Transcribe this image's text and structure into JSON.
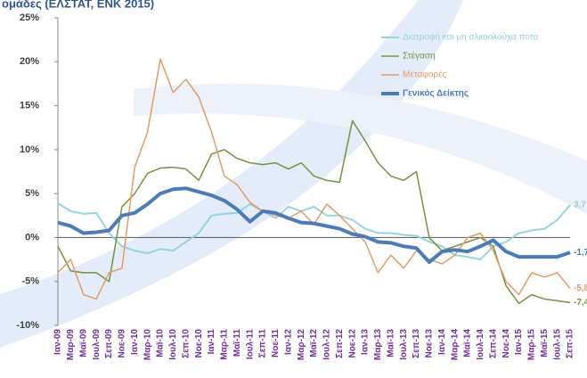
{
  "chart_data": {
    "type": "line",
    "title": "ομάδες (ΕΛΣΤΑΤ, ΕΝΚ 2015)",
    "categories": [
      "Ιαν-09",
      "Μαρ-09",
      "Μαϊ-09",
      "Ιουλ-09",
      "Σεπ-09",
      "Νοε-09",
      "Ιαν-10",
      "Μαρ-10",
      "Μαϊ-10",
      "Ιουλ-10",
      "Σεπ-10",
      "Νοε-10",
      "Ιαν-11",
      "Μαρ-11",
      "Μαϊ-11",
      "Ιουλ-11",
      "Σεπ-11",
      "Νοε-11",
      "Ιαν-12",
      "Μαρ-12",
      "Μαϊ-12",
      "Ιουλ-12",
      "Σεπ-12",
      "Νοε-12",
      "Ιαν-13",
      "Μαρ-13",
      "Μαϊ-13",
      "Ιουλ-13",
      "Σεπ-13",
      "Νοε-13",
      "Ιαν-14",
      "Μαρ-14",
      "Μαϊ-14",
      "Ιουλ-14",
      "Σεπ-14",
      "Νοε-14",
      "Ιαν-15",
      "Μαρ-15",
      "Μαϊ-15",
      "Ιουλ-15",
      "Σεπ-15"
    ],
    "series": [
      {
        "name": "Διατροφή και μη αλκοολούχα ποτά",
        "color": "#92d5dc",
        "width": 2,
        "values": [
          3.9,
          3.0,
          2.7,
          2.8,
          0.5,
          -1.0,
          -1.5,
          -1.8,
          -1.3,
          -1.5,
          -0.5,
          0.5,
          2.5,
          2.7,
          2.8,
          3.8,
          3.0,
          2.2,
          3.5,
          3.0,
          3.5,
          2.5,
          2.5,
          2.0,
          1.0,
          0.5,
          0.5,
          0.3,
          0.2,
          -0.5,
          -1.0,
          -2.0,
          -2.2,
          -2.5,
          -1.0,
          -0.5,
          0.5,
          0.8,
          1.0,
          2.0,
          3.7
        ],
        "value_labels": [
          null,
          null,
          null,
          null,
          null,
          null,
          null,
          null,
          null,
          null,
          null,
          null,
          null,
          null,
          null,
          null,
          null,
          null,
          null,
          null,
          null,
          null,
          null,
          null,
          null,
          null,
          null,
          null,
          null,
          null,
          null,
          null,
          null,
          null,
          null,
          null,
          null,
          null,
          null,
          null,
          "3,7"
        ]
      },
      {
        "name": "Στέγαση",
        "color": "#77933c",
        "width": 1.5,
        "values": [
          -1.0,
          -3.8,
          -4.0,
          -4.0,
          -5.0,
          3.5,
          5.0,
          7.3,
          7.9,
          8.0,
          7.8,
          6.5,
          9.5,
          10.0,
          9.0,
          8.5,
          8.3,
          8.5,
          7.8,
          8.5,
          7.0,
          6.5,
          6.3,
          13.3,
          11.0,
          8.5,
          7.0,
          6.5,
          7.5,
          0.0,
          -1.5,
          -1.0,
          -0.5,
          0.0,
          -1.0,
          -5.5,
          -7.5,
          -6.5,
          -7.0,
          -7.2,
          -7.4
        ],
        "value_labels": [
          null,
          null,
          null,
          null,
          null,
          null,
          null,
          null,
          null,
          null,
          null,
          null,
          null,
          null,
          null,
          null,
          null,
          null,
          null,
          null,
          null,
          null,
          null,
          null,
          null,
          null,
          null,
          null,
          null,
          null,
          null,
          null,
          null,
          null,
          null,
          null,
          null,
          null,
          null,
          null,
          "-7,4"
        ]
      },
      {
        "name": "Μεταφορές",
        "color": "#e59b63",
        "width": 1.5,
        "values": [
          -4.0,
          -2.5,
          -6.5,
          -7.0,
          -4.0,
          -3.5,
          8.0,
          12.0,
          20.3,
          16.5,
          18.0,
          16.0,
          12.0,
          7.0,
          6.0,
          4.0,
          3.0,
          2.5,
          2.2,
          3.0,
          1.5,
          3.8,
          2.5,
          1.0,
          -0.5,
          -4.0,
          -2.0,
          -3.5,
          -1.5,
          -2.5,
          -3.0,
          -2.0,
          0.0,
          0.5,
          -1.5,
          -5.0,
          -6.5,
          -4.0,
          -4.5,
          -4.0,
          -5.8
        ],
        "value_labels": [
          null,
          null,
          null,
          null,
          null,
          null,
          null,
          null,
          null,
          null,
          null,
          null,
          null,
          null,
          null,
          null,
          null,
          null,
          null,
          null,
          null,
          null,
          null,
          null,
          null,
          null,
          null,
          null,
          null,
          null,
          null,
          null,
          null,
          null,
          null,
          null,
          null,
          null,
          null,
          null,
          "-5,8"
        ]
      },
      {
        "name": "Γενικός Δείκτης",
        "color": "#4a7bbd",
        "width": 4,
        "values": [
          1.7,
          1.3,
          0.5,
          0.6,
          0.8,
          2.5,
          2.8,
          3.8,
          5.0,
          5.5,
          5.6,
          5.2,
          4.8,
          4.2,
          3.2,
          1.8,
          3.0,
          2.8,
          2.2,
          1.7,
          1.6,
          1.3,
          1.0,
          0.4,
          0.1,
          -0.5,
          -0.6,
          -1.0,
          -1.2,
          -2.8,
          -1.6,
          -1.4,
          -1.6,
          -1.0,
          -0.3,
          -1.6,
          -2.2,
          -2.2,
          -2.2,
          -2.2,
          -1.7
        ],
        "value_labels": [
          null,
          null,
          null,
          null,
          null,
          null,
          null,
          null,
          null,
          null,
          null,
          null,
          null,
          null,
          null,
          null,
          null,
          null,
          null,
          null,
          null,
          null,
          null,
          null,
          null,
          null,
          null,
          null,
          null,
          null,
          null,
          null,
          null,
          null,
          null,
          null,
          null,
          null,
          null,
          null,
          "-1,7"
        ]
      }
    ],
    "ylim": [
      -10,
      25
    ],
    "yticks": [
      {
        "value": -10,
        "label": "-10%"
      },
      {
        "value": -5,
        "label": "-5%"
      },
      {
        "value": 0,
        "label": "0%"
      },
      {
        "value": 5,
        "label": "5%"
      },
      {
        "value": 10,
        "label": "10%"
      },
      {
        "value": 15,
        "label": "15%"
      },
      {
        "value": 20,
        "label": "20%"
      },
      {
        "value": 25,
        "label": "25%"
      }
    ],
    "legend": "upper right"
  }
}
